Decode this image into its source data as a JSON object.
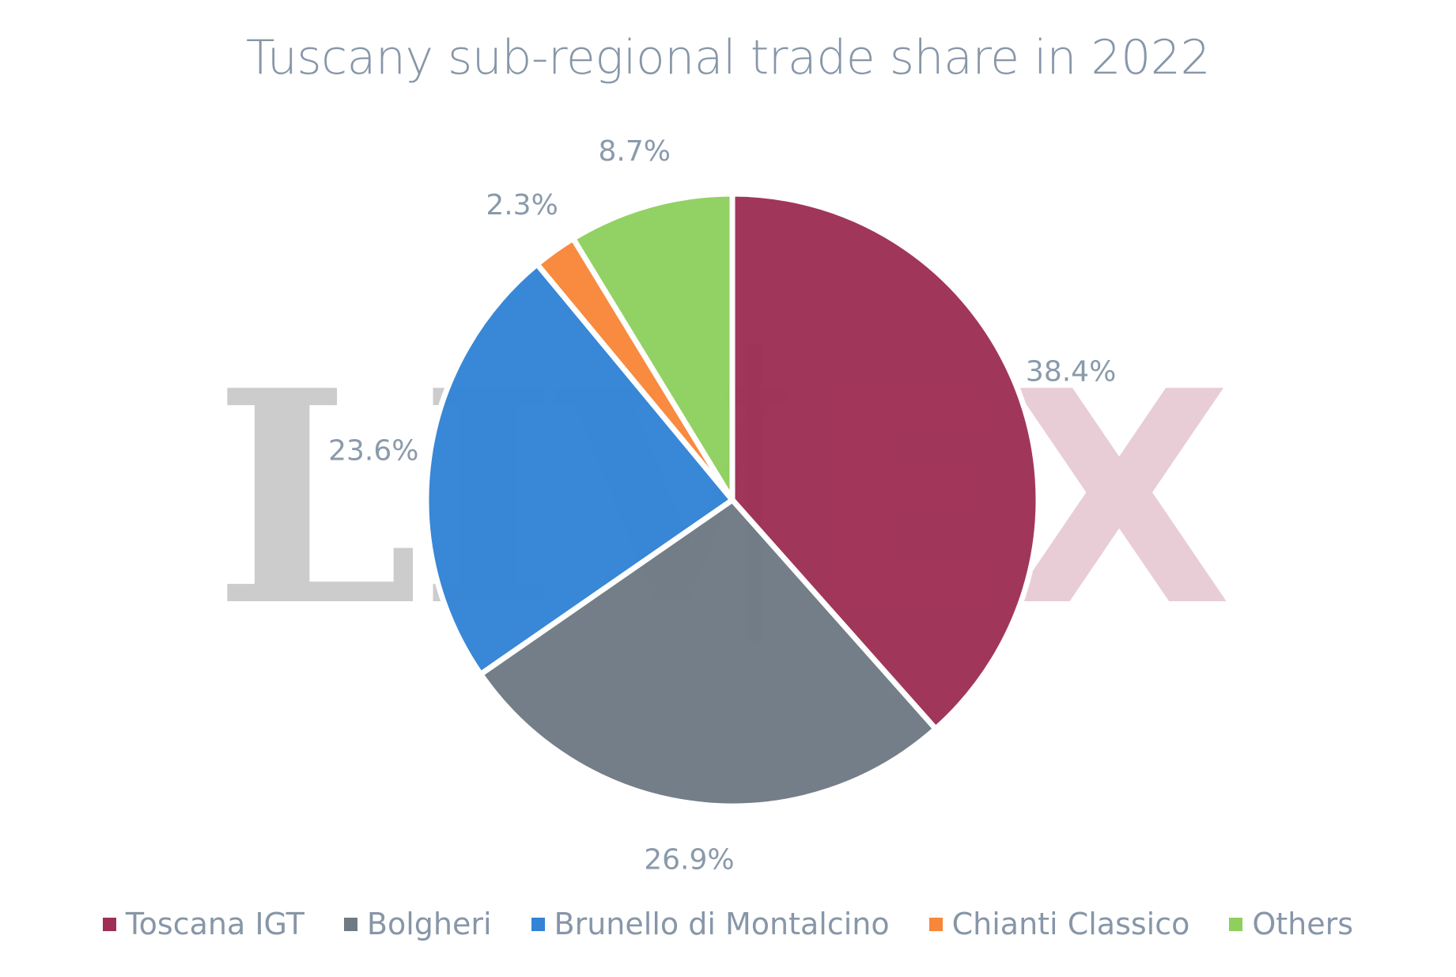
{
  "chart_data": {
    "type": "pie",
    "title": "Tuscany sub-regional trade share in 2022",
    "categories": [
      "Toscana IGT",
      "Bolgheri",
      "Brunello di Montalcino",
      "Chianti Classico",
      "Others"
    ],
    "values": [
      38.4,
      26.9,
      23.6,
      2.3,
      8.7
    ],
    "labels": [
      "38.4%",
      "26.9%",
      "23.6%",
      "2.3%",
      "8.7%"
    ],
    "colors": [
      "#9e2f56",
      "#6f7a84",
      "#3383d6",
      "#f8873a",
      "#8ecf5e"
    ],
    "legend_position": "bottom",
    "start_angle": "12 o'clock, clockwise"
  },
  "watermark": {
    "part1": "LIV",
    "part2": "EX",
    "colors": [
      "#cccccc",
      "#e8cdd6"
    ]
  }
}
